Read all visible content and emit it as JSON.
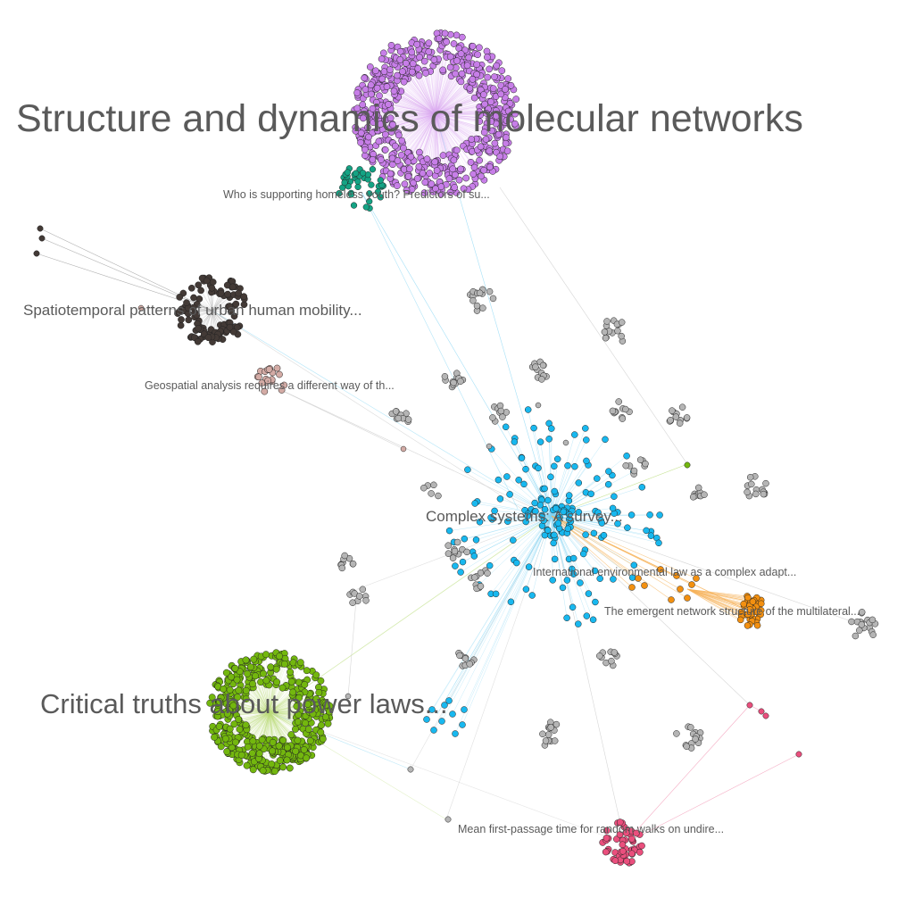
{
  "graph": {
    "node_stroke": "#222222",
    "clusters": [
      {
        "name": "molecular-networks",
        "label": "Structure and dynamics of molecular networks",
        "color": "#c77ee8",
        "count": 620
      },
      {
        "name": "homeless-youth",
        "label": "Who is supporting homeless youth? Predictors of su...",
        "color": "#14a384",
        "count": 40
      },
      {
        "name": "urban-mobility",
        "label": "Spatiotemporal patterns of urban human mobility...",
        "color": "#433a36",
        "count": 110
      },
      {
        "name": "geospatial",
        "label": "Geospatial analysis requires a different way of th...",
        "color": "#d3aba5",
        "count": 20
      },
      {
        "name": "complex-systems",
        "label": "Complex systems: A survey...",
        "color": "#18b8ef",
        "count": 180
      },
      {
        "name": "environmental-law",
        "label": "International environmental law as a complex adapt...",
        "color": "#f39010",
        "count": 20
      },
      {
        "name": "multilateral",
        "label": "The emergent network structure of the multilateral...",
        "color": "#f39010",
        "count": 40
      },
      {
        "name": "power-laws",
        "label": "Critical truths about power laws...",
        "color": "#73b70e",
        "count": 460
      },
      {
        "name": "random-walks",
        "label": "Mean first-passage time for random walks on undire...",
        "color": "#ea4f7d",
        "count": 50
      },
      {
        "name": "small-groups",
        "label": "",
        "color": "#b5b5b5",
        "count": 20
      }
    ],
    "edge_colors": {
      "molecular": "#d9a6f2",
      "complex": "#7fd3f3",
      "power": "#b8dc78",
      "mobility": "#9a9a9a",
      "orange": "#f7b35a",
      "pink": "#f29ab6",
      "gray": "#cccccc"
    }
  }
}
